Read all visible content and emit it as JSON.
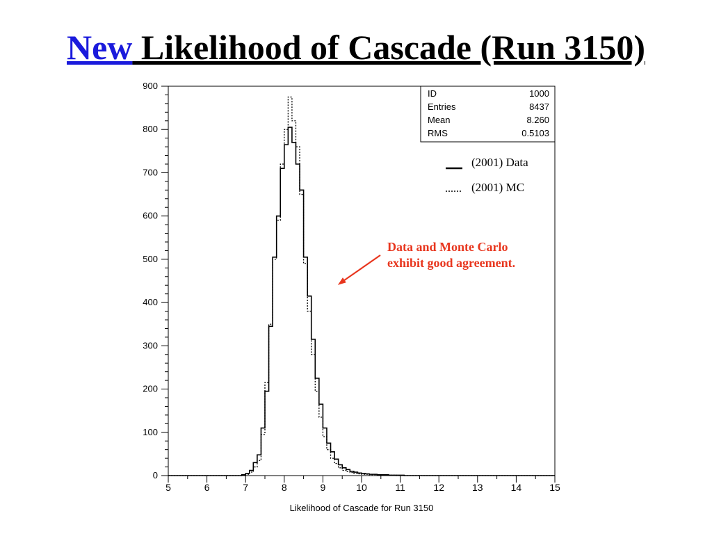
{
  "slide": {
    "title_highlight": "New",
    "title_main": " Likelihood of Cascade (Run 3150)"
  },
  "colors": {
    "highlight": "#1a1adc",
    "callout": "#e8361e",
    "axis": "#000000"
  },
  "callout": {
    "text": "Data and Monte Carlo exhibit good agreement."
  },
  "chart_data": {
    "type": "bar",
    "style": "histogram-step",
    "xlabel": "Likelihood of Cascade for Run 3150",
    "ylabel": "",
    "xlim": [
      5,
      15
    ],
    "ylim": [
      0,
      900
    ],
    "xticks": [
      5,
      6,
      7,
      8,
      9,
      10,
      11,
      12,
      13,
      14,
      15
    ],
    "yticks": [
      0,
      100,
      200,
      300,
      400,
      500,
      600,
      700,
      800,
      900
    ],
    "grid": false,
    "stats_box": {
      "position": "top-right",
      "rows": [
        {
          "label": "ID",
          "value": "1000"
        },
        {
          "label": "Entries",
          "value": "8437"
        },
        {
          "label": "Mean",
          "value": "8.260"
        },
        {
          "label": "RMS",
          "value": "0.5103"
        }
      ]
    },
    "legend": {
      "position": "top-right",
      "entries": [
        {
          "name": "(2001) Data",
          "style": "solid"
        },
        {
          "name": "(2001) MC",
          "style": "dotted"
        }
      ]
    },
    "bin_width": 0.1,
    "x": [
      6.9,
      7.0,
      7.1,
      7.2,
      7.3,
      7.4,
      7.5,
      7.6,
      7.7,
      7.8,
      7.9,
      8.0,
      8.1,
      8.2,
      8.3,
      8.4,
      8.5,
      8.6,
      8.7,
      8.8,
      8.9,
      9.0,
      9.1,
      9.2,
      9.3,
      9.4,
      9.5,
      9.6,
      9.7,
      9.8,
      9.9,
      10.0,
      10.1,
      10.2,
      10.3,
      10.4,
      10.5,
      10.6,
      10.7,
      10.8,
      10.9,
      11.0,
      11.1,
      11.2
    ],
    "series": [
      {
        "name": "(2001) Data",
        "style": "solid",
        "values": [
          2,
          5,
          12,
          30,
          48,
          110,
          195,
          345,
          505,
          600,
          710,
          765,
          805,
          770,
          720,
          660,
          505,
          415,
          315,
          225,
          165,
          110,
          75,
          55,
          38,
          25,
          18,
          14,
          10,
          8,
          6,
          5,
          4,
          3,
          3,
          2,
          2,
          2,
          1,
          1,
          1,
          1,
          0,
          0
        ]
      },
      {
        "name": "(2001) MC",
        "style": "dotted",
        "values": [
          1,
          3,
          8,
          20,
          35,
          95,
          215,
          350,
          500,
          590,
          720,
          800,
          875,
          820,
          760,
          650,
          490,
          380,
          280,
          195,
          135,
          90,
          60,
          40,
          28,
          18,
          12,
          9,
          7,
          5,
          4,
          3,
          3,
          2,
          2,
          1,
          1,
          1,
          1,
          1,
          0,
          0,
          0,
          0
        ]
      }
    ]
  }
}
